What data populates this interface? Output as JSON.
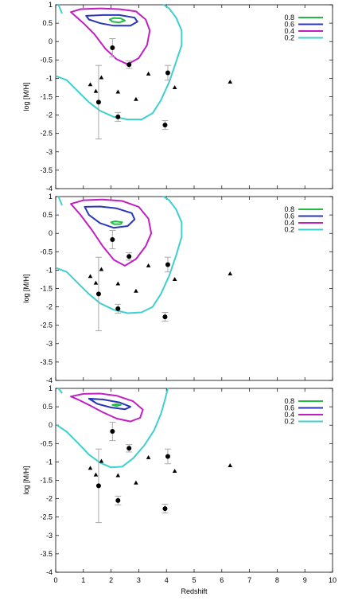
{
  "chart_data": [
    {
      "type": "scatter",
      "panel": "top",
      "xlabel": "",
      "ylabel": "log [M/H]",
      "xlim": [
        0,
        10
      ],
      "ylim": [
        -4,
        1
      ],
      "yticks": [
        "1",
        "0.5",
        "0",
        "-0.5",
        "-1",
        "-1.5",
        "-2",
        "-2.5",
        "-3",
        "-3.5",
        "-4"
      ],
      "xticks": [],
      "legend": {
        "placement": "top-right",
        "entries": [
          "0.8",
          "0.6",
          "0.4",
          "0.2"
        ]
      },
      "contours": [
        {
          "level": "0.8",
          "color": "#22bb44",
          "points": [
            [
              1.95,
              0.6
            ],
            [
              2.1,
              0.64
            ],
            [
              2.35,
              0.63
            ],
            [
              2.5,
              0.57
            ],
            [
              2.3,
              0.52
            ],
            [
              2.05,
              0.54
            ],
            [
              1.95,
              0.6
            ]
          ]
        },
        {
          "level": "0.6",
          "color": "#2a36b8",
          "points": [
            [
              1.1,
              0.7
            ],
            [
              1.7,
              0.72
            ],
            [
              2.3,
              0.72
            ],
            [
              2.85,
              0.65
            ],
            [
              2.95,
              0.54
            ],
            [
              2.7,
              0.43
            ],
            [
              2.1,
              0.43
            ],
            [
              1.6,
              0.5
            ],
            [
              1.2,
              0.6
            ],
            [
              1.1,
              0.7
            ]
          ]
        },
        {
          "level": "0.4",
          "color": "#c21fc2",
          "points": [
            [
              0.55,
              0.8
            ],
            [
              0.9,
              0.88
            ],
            [
              1.6,
              0.9
            ],
            [
              2.3,
              0.88
            ],
            [
              2.9,
              0.82
            ],
            [
              3.25,
              0.6
            ],
            [
              3.4,
              0.3
            ],
            [
              3.3,
              -0.1
            ],
            [
              3.0,
              -0.45
            ],
            [
              2.6,
              -0.62
            ],
            [
              2.2,
              -0.48
            ],
            [
              1.8,
              -0.2
            ],
            [
              1.4,
              0.2
            ],
            [
              1.0,
              0.5
            ],
            [
              0.7,
              0.7
            ],
            [
              0.55,
              0.8
            ]
          ]
        },
        {
          "level": "0.2",
          "color": "#3fcfcf",
          "points": [
            [
              0.05,
              -0.95
            ],
            [
              0.4,
              -1.05
            ],
            [
              0.8,
              -1.35
            ],
            [
              1.2,
              -1.65
            ],
            [
              1.6,
              -1.88
            ],
            [
              2.1,
              -2.05
            ],
            [
              2.6,
              -2.12
            ],
            [
              3.1,
              -2.12
            ],
            [
              3.5,
              -1.95
            ],
            [
              3.8,
              -1.6
            ],
            [
              4.1,
              -1.1
            ],
            [
              4.35,
              -0.55
            ],
            [
              4.55,
              -0.1
            ],
            [
              4.55,
              0.3
            ],
            [
              4.35,
              0.65
            ],
            [
              4.1,
              0.9
            ],
            [
              3.9,
              1.0
            ]
          ]
        },
        {
          "level": "0.2",
          "color": "#3fcfcf",
          "points": [
            [
              0.1,
              1.0
            ],
            [
              0.22,
              0.78
            ]
          ]
        }
      ],
      "circles": [
        {
          "x": 1.55,
          "y": -1.65,
          "err": 1.0
        },
        {
          "x": 2.05,
          "y": -0.17,
          "err": 0.25
        },
        {
          "x": 2.25,
          "y": -2.05,
          "err": 0.12
        },
        {
          "x": 2.65,
          "y": -0.63,
          "err": 0.1
        },
        {
          "x": 3.95,
          "y": -2.27,
          "err": 0.12
        },
        {
          "x": 4.05,
          "y": -0.85,
          "err": 0.2
        }
      ],
      "triangles": [
        {
          "x": 1.25,
          "y": -1.17
        },
        {
          "x": 1.45,
          "y": -1.35
        },
        {
          "x": 1.65,
          "y": -0.98
        },
        {
          "x": 2.25,
          "y": -1.37
        },
        {
          "x": 2.9,
          "y": -1.57
        },
        {
          "x": 3.35,
          "y": -0.88
        },
        {
          "x": 4.3,
          "y": -1.25
        },
        {
          "x": 6.3,
          "y": -1.1
        }
      ]
    },
    {
      "type": "scatter",
      "panel": "middle",
      "xlabel": "",
      "ylabel": "log [M/H]",
      "xlim": [
        0,
        10
      ],
      "ylim": [
        -4,
        1
      ],
      "yticks": [
        "1",
        "0.5",
        "0",
        "-0.5",
        "-1",
        "-1.5",
        "-2",
        "-2.5",
        "-3",
        "-3.5",
        "-4"
      ],
      "xticks": [],
      "legend": {
        "placement": "top-right",
        "entries": [
          "0.8",
          "0.6",
          "0.4",
          "0.2"
        ]
      },
      "contours": [
        {
          "level": "0.8",
          "color": "#22bb44",
          "points": [
            [
              2.0,
              0.3
            ],
            [
              2.15,
              0.33
            ],
            [
              2.4,
              0.3
            ],
            [
              2.35,
              0.25
            ],
            [
              2.1,
              0.25
            ],
            [
              2.0,
              0.3
            ]
          ]
        },
        {
          "level": "0.6",
          "color": "#2a36b8",
          "points": [
            [
              1.05,
              0.72
            ],
            [
              1.6,
              0.73
            ],
            [
              2.2,
              0.68
            ],
            [
              2.75,
              0.55
            ],
            [
              2.85,
              0.38
            ],
            [
              2.6,
              0.2
            ],
            [
              2.1,
              0.15
            ],
            [
              1.6,
              0.28
            ],
            [
              1.2,
              0.5
            ],
            [
              1.05,
              0.72
            ]
          ]
        },
        {
          "level": "0.4",
          "color": "#c21fc2",
          "points": [
            [
              0.55,
              0.8
            ],
            [
              1.0,
              0.9
            ],
            [
              1.7,
              0.92
            ],
            [
              2.4,
              0.88
            ],
            [
              3.0,
              0.72
            ],
            [
              3.35,
              0.4
            ],
            [
              3.45,
              0.0
            ],
            [
              3.25,
              -0.35
            ],
            [
              2.9,
              -0.7
            ],
            [
              2.5,
              -0.88
            ],
            [
              2.1,
              -0.72
            ],
            [
              1.7,
              -0.35
            ],
            [
              1.3,
              0.1
            ],
            [
              0.9,
              0.5
            ],
            [
              0.55,
              0.8
            ]
          ]
        },
        {
          "level": "0.2",
          "color": "#3fcfcf",
          "points": [
            [
              0.05,
              -0.95
            ],
            [
              0.4,
              -1.05
            ],
            [
              0.8,
              -1.35
            ],
            [
              1.2,
              -1.65
            ],
            [
              1.6,
              -1.9
            ],
            [
              2.1,
              -2.08
            ],
            [
              2.6,
              -2.17
            ],
            [
              3.1,
              -2.15
            ],
            [
              3.5,
              -2.0
            ],
            [
              3.8,
              -1.65
            ],
            [
              4.1,
              -1.15
            ],
            [
              4.35,
              -0.6
            ],
            [
              4.55,
              -0.1
            ],
            [
              4.55,
              0.3
            ],
            [
              4.35,
              0.65
            ],
            [
              4.1,
              0.9
            ],
            [
              3.9,
              1.0
            ]
          ]
        },
        {
          "level": "0.2",
          "color": "#3fcfcf",
          "points": [
            [
              0.1,
              1.0
            ],
            [
              0.22,
              0.78
            ]
          ]
        }
      ],
      "circles": [
        {
          "x": 1.55,
          "y": -1.65,
          "err": 1.0
        },
        {
          "x": 2.05,
          "y": -0.17,
          "err": 0.25
        },
        {
          "x": 2.25,
          "y": -2.05,
          "err": 0.12
        },
        {
          "x": 2.65,
          "y": -0.63,
          "err": 0.1
        },
        {
          "x": 3.95,
          "y": -2.27,
          "err": 0.12
        },
        {
          "x": 4.05,
          "y": -0.85,
          "err": 0.2
        }
      ],
      "triangles": [
        {
          "x": 1.25,
          "y": -1.17
        },
        {
          "x": 1.45,
          "y": -1.35
        },
        {
          "x": 1.65,
          "y": -0.98
        },
        {
          "x": 2.25,
          "y": -1.37
        },
        {
          "x": 2.9,
          "y": -1.57
        },
        {
          "x": 3.35,
          "y": -0.88
        },
        {
          "x": 4.3,
          "y": -1.25
        },
        {
          "x": 6.3,
          "y": -1.1
        }
      ]
    },
    {
      "type": "scatter",
      "panel": "bottom",
      "xlabel": "Redshift",
      "ylabel": "log [M/H]",
      "xlim": [
        0,
        10
      ],
      "ylim": [
        -4,
        1
      ],
      "yticks": [
        "1",
        "0.5",
        "0",
        "-0.5",
        "-1",
        "-1.5",
        "-2",
        "-2.5",
        "-3",
        "-3.5",
        "-4"
      ],
      "xticks": [
        "0",
        "1",
        "2",
        "3",
        "4",
        "5",
        "6",
        "7",
        "8",
        "9",
        "10"
      ],
      "legend": {
        "placement": "top-right",
        "entries": [
          "0.8",
          "0.6",
          "0.4",
          "0.2"
        ]
      },
      "contours": [
        {
          "level": "0.8",
          "color": "#22bb44",
          "points": [
            [
              2.05,
              0.55
            ],
            [
              2.2,
              0.57
            ],
            [
              2.35,
              0.55
            ],
            [
              2.2,
              0.52
            ],
            [
              2.05,
              0.55
            ]
          ]
        },
        {
          "level": "0.6",
          "color": "#2a36b8",
          "points": [
            [
              1.2,
              0.72
            ],
            [
              1.7,
              0.7
            ],
            [
              2.3,
              0.62
            ],
            [
              2.7,
              0.5
            ],
            [
              2.5,
              0.43
            ],
            [
              2.0,
              0.48
            ],
            [
              1.5,
              0.58
            ],
            [
              1.2,
              0.72
            ]
          ]
        },
        {
          "level": "0.4",
          "color": "#c21fc2",
          "points": [
            [
              0.55,
              0.78
            ],
            [
              1.0,
              0.85
            ],
            [
              1.6,
              0.86
            ],
            [
              2.2,
              0.8
            ],
            [
              2.8,
              0.65
            ],
            [
              3.15,
              0.42
            ],
            [
              3.05,
              0.2
            ],
            [
              2.7,
              0.1
            ],
            [
              2.2,
              0.18
            ],
            [
              1.7,
              0.35
            ],
            [
              1.2,
              0.55
            ],
            [
              0.8,
              0.7
            ],
            [
              0.55,
              0.78
            ]
          ]
        },
        {
          "level": "0.2",
          "color": "#3fcfcf",
          "points": [
            [
              0.05,
              0.0
            ],
            [
              0.4,
              -0.18
            ],
            [
              0.8,
              -0.48
            ],
            [
              1.2,
              -0.8
            ],
            [
              1.6,
              -1.02
            ],
            [
              2.0,
              -1.15
            ],
            [
              2.4,
              -1.13
            ],
            [
              2.8,
              -0.9
            ],
            [
              3.2,
              -0.55
            ],
            [
              3.55,
              -0.15
            ],
            [
              3.8,
              0.3
            ],
            [
              3.95,
              0.7
            ],
            [
              4.05,
              1.0
            ]
          ]
        },
        {
          "level": "0.2",
          "color": "#3fcfcf",
          "points": [
            [
              0.1,
              1.0
            ],
            [
              0.22,
              0.88
            ]
          ]
        }
      ],
      "circles": [
        {
          "x": 1.55,
          "y": -1.65,
          "err": 1.0
        },
        {
          "x": 2.05,
          "y": -0.17,
          "err": 0.25
        },
        {
          "x": 2.25,
          "y": -2.05,
          "err": 0.12
        },
        {
          "x": 2.65,
          "y": -0.63,
          "err": 0.1
        },
        {
          "x": 3.95,
          "y": -2.27,
          "err": 0.12
        },
        {
          "x": 4.05,
          "y": -0.85,
          "err": 0.2
        }
      ],
      "triangles": [
        {
          "x": 1.25,
          "y": -1.17
        },
        {
          "x": 1.45,
          "y": -1.35
        },
        {
          "x": 1.65,
          "y": -0.98
        },
        {
          "x": 2.25,
          "y": -1.37
        },
        {
          "x": 2.9,
          "y": -1.57
        },
        {
          "x": 3.35,
          "y": -0.88
        },
        {
          "x": 4.3,
          "y": -1.25
        },
        {
          "x": 6.3,
          "y": -1.1
        }
      ]
    }
  ]
}
